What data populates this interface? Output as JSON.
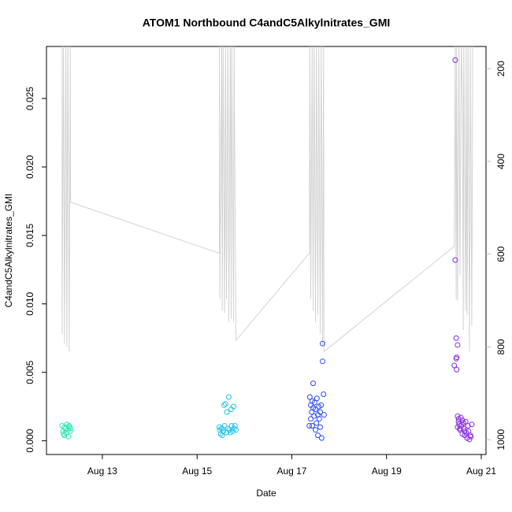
{
  "chart_data": {
    "type": "scatter",
    "title": "ATOM1 Northbound C4andC5Alkylnitrates_GMI",
    "x_label": "Date",
    "y_label": "C4andC5Alkylnitrates_GMI",
    "xlim": [
      11.82,
      21.1
    ],
    "xticks": [
      {
        "value": 13,
        "label": "Aug 13"
      },
      {
        "value": 15,
        "label": "Aug 15"
      },
      {
        "value": 17,
        "label": "Aug 17"
      },
      {
        "value": 19,
        "label": "Aug 19"
      },
      {
        "value": 21,
        "label": "Aug 21"
      }
    ],
    "ylim": [
      -0.001,
      0.0288
    ],
    "yticks": [
      {
        "value": 0,
        "label": "0.000"
      },
      {
        "value": 0.005,
        "label": "0.005"
      },
      {
        "value": 0.01,
        "label": "0.010"
      },
      {
        "value": 0.015,
        "label": "0.015"
      },
      {
        "value": 0.02,
        "label": "0.020"
      },
      {
        "value": 0.025,
        "label": "0.025"
      }
    ],
    "y2lim": [
      1032,
      152
    ],
    "y2ticks": [
      200,
      400,
      600,
      800,
      1000
    ],
    "y2color": "#bbbbbb",
    "series": [
      {
        "color": "#2de8b5",
        "x": [
          12.15,
          12.17,
          12.18,
          12.2,
          12.2,
          12.22,
          12.23,
          12.25,
          12.27,
          12.28,
          12.3,
          12.3,
          12.32,
          12.33
        ],
        "values": [
          0.0011,
          0.0007,
          0.0005,
          0.001,
          0.0004,
          0.0009,
          0.0006,
          0.0012,
          0.0008,
          0.0003,
          0.0011,
          0.001,
          0.0007,
          0.0009
        ]
      },
      {
        "color": "#22c4ea",
        "x": [
          15.47,
          15.48,
          15.5,
          15.52,
          15.53,
          15.55,
          15.57,
          15.58,
          15.6,
          15.62,
          15.63,
          15.65,
          15.67,
          15.68,
          15.7,
          15.72,
          15.73,
          15.75,
          15.77,
          15.78,
          15.8,
          15.82
        ],
        "values": [
          0.001,
          0.0008,
          0.0005,
          0.0009,
          0.0004,
          0.0007,
          0.0026,
          0.0011,
          0.0027,
          0.0006,
          0.0021,
          0.0009,
          0.0032,
          0.0008,
          0.0006,
          0.0023,
          0.0011,
          0.0007,
          0.0025,
          0.0009,
          0.0011,
          0.0008
        ]
      },
      {
        "color": "#2a4cf0",
        "x": [
          17.37,
          17.38,
          17.4,
          17.4,
          17.42,
          17.43,
          17.43,
          17.45,
          17.45,
          17.47,
          17.48,
          17.5,
          17.5,
          17.52,
          17.53,
          17.55,
          17.55,
          17.57,
          17.58,
          17.6,
          17.6,
          17.62,
          17.63,
          17.65,
          17.65,
          17.67,
          17.68
        ],
        "values": [
          0.0011,
          0.0032,
          0.0016,
          0.0026,
          0.0021,
          0.0029,
          0.0011,
          0.0024,
          0.0042,
          0.0018,
          0.0028,
          0.0008,
          0.0023,
          0.0013,
          0.0031,
          0.0019,
          0.0004,
          0.0025,
          0.0016,
          0.0021,
          0.001,
          0.0026,
          0.0002,
          0.0071,
          0.0058,
          0.0034,
          0.0019
        ]
      },
      {
        "color": "#8a2be2",
        "x": [
          20.43,
          20.45,
          20.45,
          20.47,
          20.47,
          20.48,
          20.48,
          20.5,
          20.5,
          20.52,
          20.53,
          20.55,
          20.57,
          20.58,
          20.6,
          20.62,
          20.63,
          20.65,
          20.67,
          20.68,
          20.7,
          20.72,
          20.73,
          20.75,
          20.77,
          20.78,
          20.8,
          20.5,
          20.52,
          20.55,
          20.6,
          20.65
        ],
        "values": [
          0.0055,
          0.0278,
          0.0132,
          0.0075,
          0.006,
          0.0052,
          0.0061,
          0.0018,
          0.007,
          0.0016,
          0.0012,
          0.0008,
          0.0017,
          0.0011,
          0.0005,
          0.0013,
          0.0009,
          0.0004,
          0.0014,
          0.0006,
          0.0002,
          0.0011,
          0.0007,
          0.0001,
          0.0004,
          0.0003,
          0.0012,
          0.001,
          0.0014,
          0.0009,
          0.0015,
          0.0007
        ]
      },
      {
        "type": "line",
        "axis": "y2",
        "color": "#d3d3d3",
        "x": [
          12.15,
          12.15,
          12.18,
          12.2,
          12.23,
          12.25,
          12.27,
          12.3,
          12.32,
          12.33,
          15.47,
          15.47,
          15.48,
          15.52,
          15.53,
          15.55,
          15.58,
          15.6,
          15.62,
          15.65,
          15.67,
          15.7,
          15.72,
          15.73,
          15.77,
          15.78,
          15.82,
          17.37,
          17.38,
          17.4,
          17.43,
          17.45,
          17.47,
          17.5,
          17.52,
          17.55,
          17.57,
          17.6,
          17.62,
          17.65,
          17.67,
          17.68,
          20.43,
          20.45,
          20.47,
          20.48,
          20.5,
          20.53,
          20.55,
          20.58,
          20.6,
          20.62,
          20.63,
          20.67,
          20.68,
          20.7,
          20.72,
          20.75,
          20.77,
          20.8,
          20.82
        ],
        "values": [
          140,
          773,
          140,
          793,
          140,
          800,
          140,
          810,
          140,
          488,
          598,
          140,
          697,
          140,
          722,
          140,
          727,
          140,
          697,
          140,
          747,
          140,
          739,
          140,
          747,
          140,
          786,
          598,
          140,
          697,
          140,
          722,
          140,
          747,
          140,
          731,
          140,
          773,
          140,
          798,
          140,
          810,
          583,
          140,
          697,
          140,
          700,
          140,
          646,
          140,
          253,
          764,
          140,
          722,
          140,
          731,
          140,
          810,
          140,
          756,
          140
        ]
      }
    ]
  }
}
